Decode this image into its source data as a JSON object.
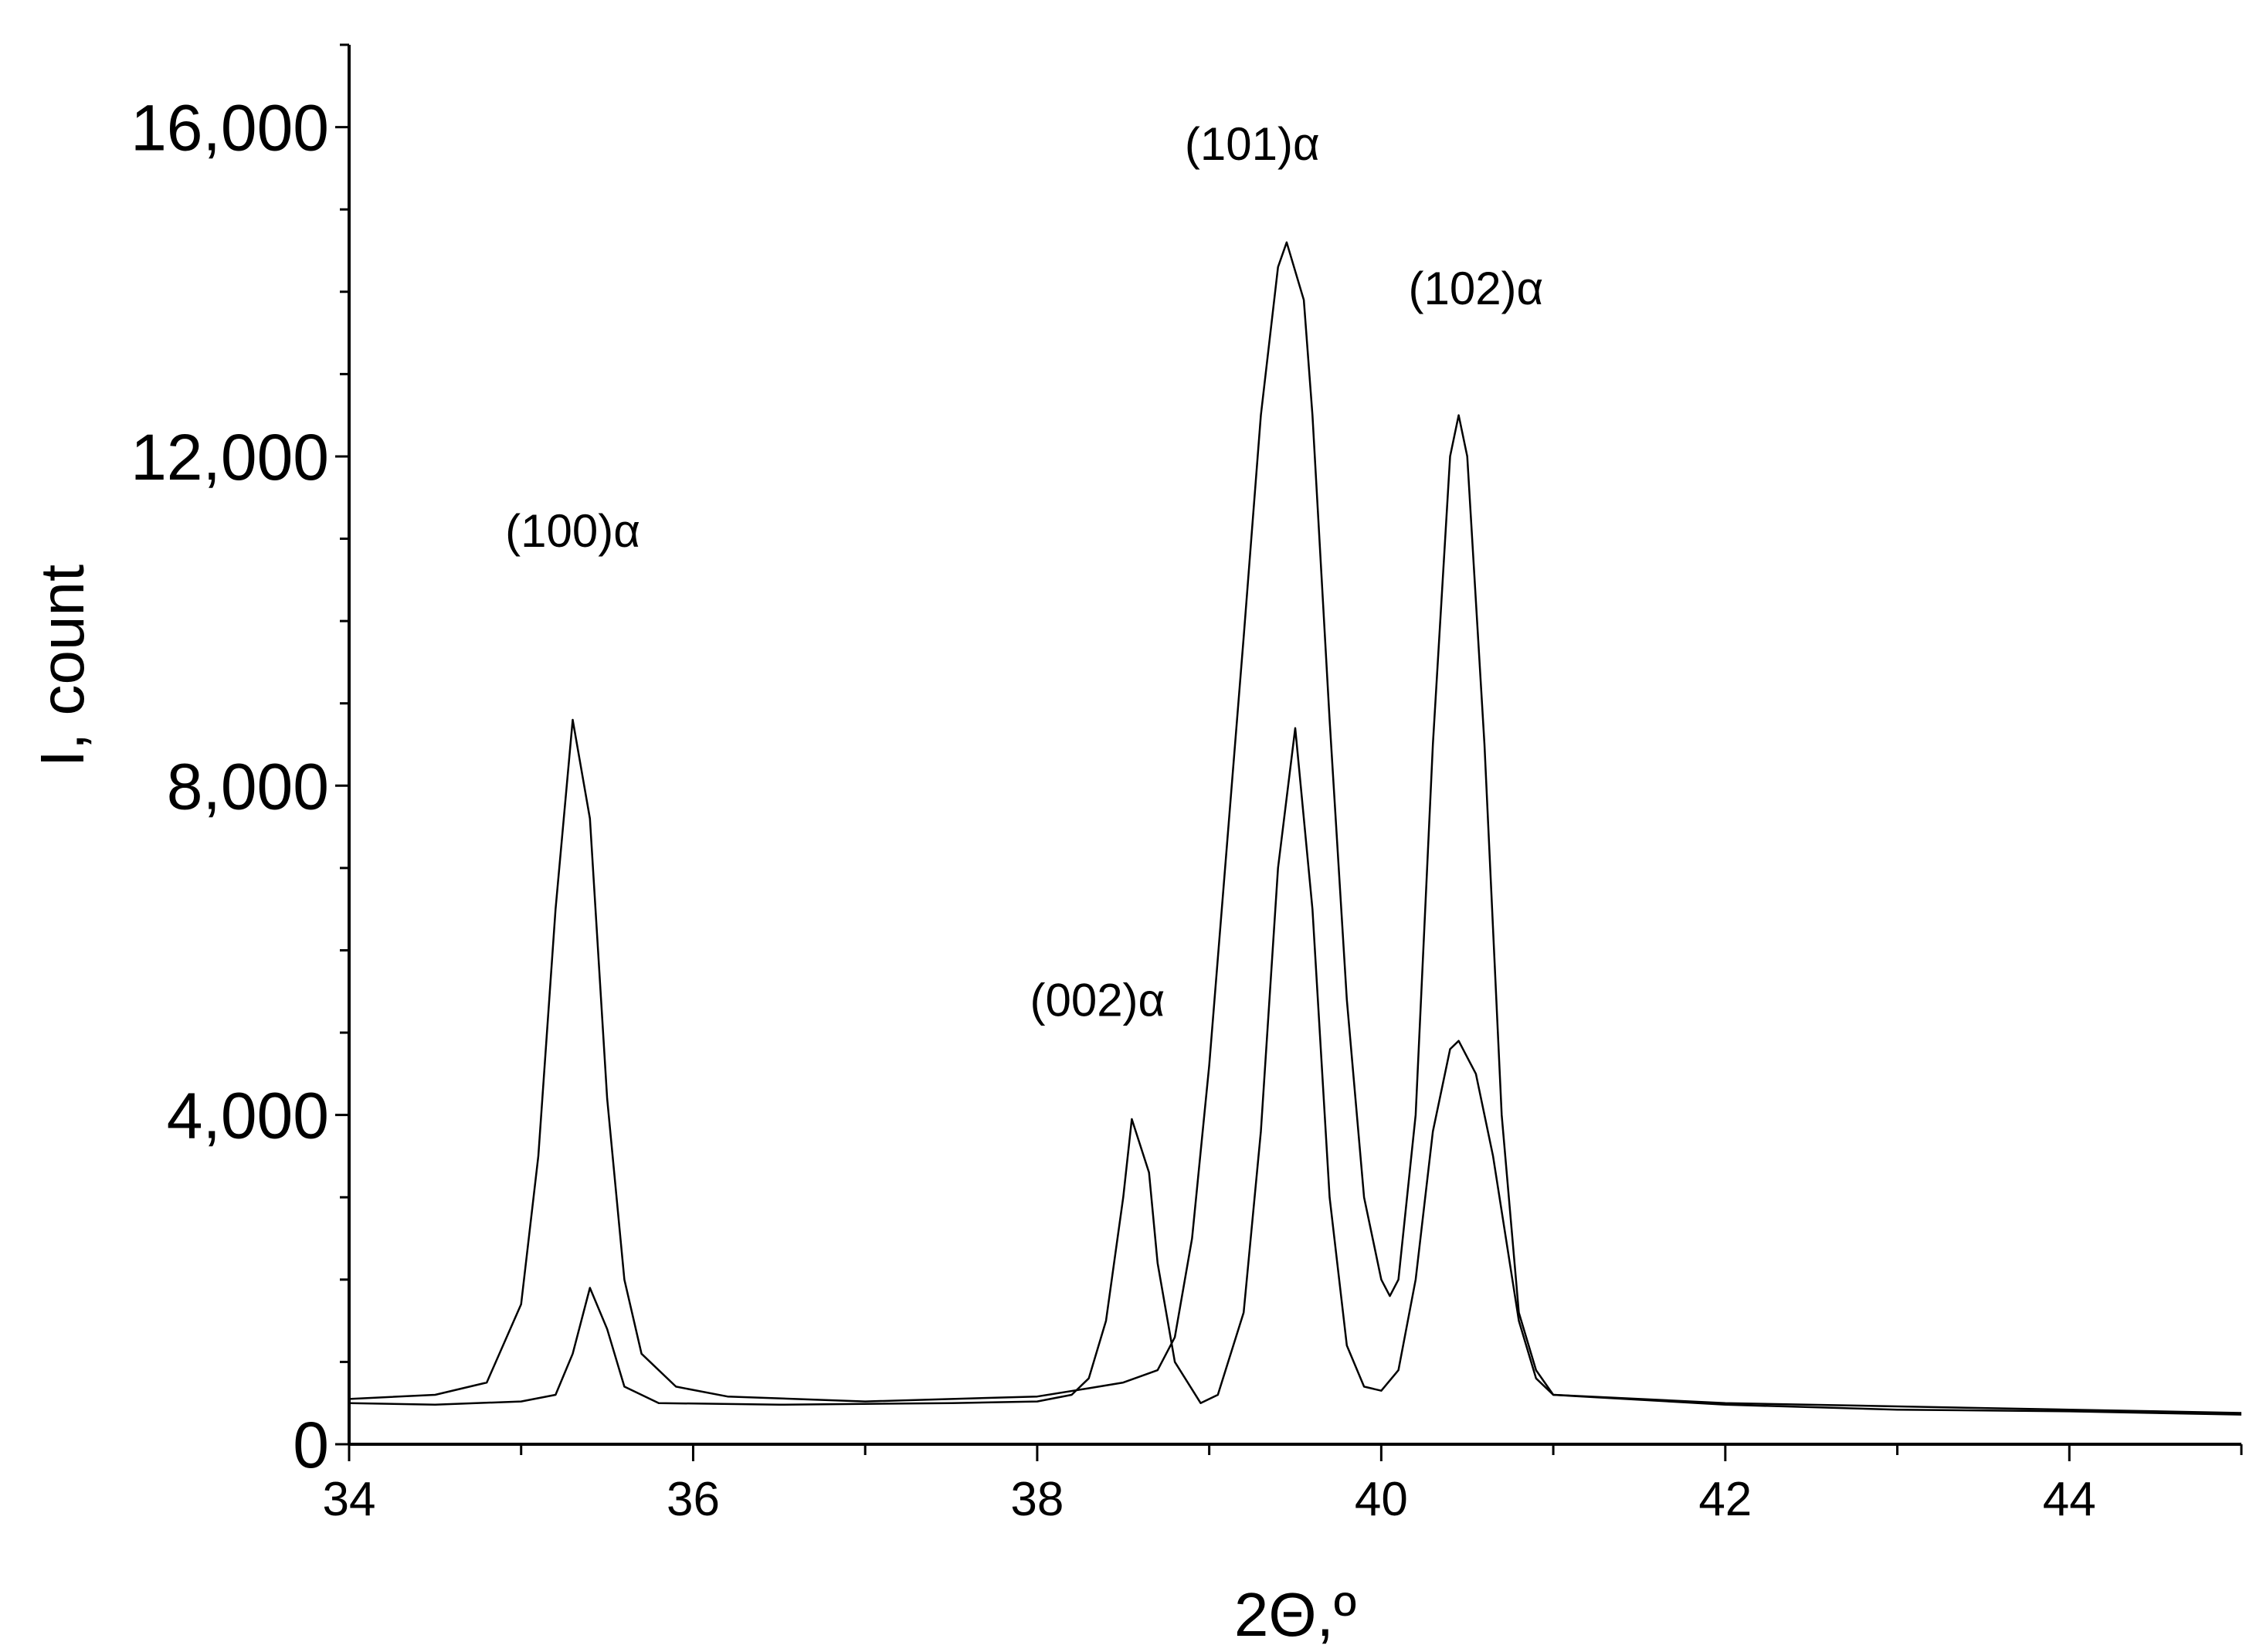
{
  "chart_data": {
    "type": "line",
    "xlabel": "2Θ,º",
    "ylabel": "I, count",
    "xlim": [
      34,
      45
    ],
    "ylim": [
      0,
      17000
    ],
    "x_major_ticks": [
      34,
      36,
      38,
      40,
      42,
      44
    ],
    "x_minor_ticks": [
      35,
      37,
      39,
      41,
      43,
      45
    ],
    "y_major_ticks": [
      0,
      4000,
      8000,
      12000,
      16000
    ],
    "y_tick_labels": [
      "0",
      "4,000",
      "8,000",
      "12,000",
      "16,000"
    ],
    "grid": false,
    "annotations": [
      {
        "text": "(100)α",
        "x": 35.3,
        "y": 10900
      },
      {
        "text": "(002)α",
        "x": 38.35,
        "y": 5200
      },
      {
        "text": "(101)α",
        "x": 39.25,
        "y": 15600
      },
      {
        "text": "(102)α",
        "x": 40.55,
        "y": 13850
      }
    ],
    "series": [
      {
        "points": [
          [
            34.0,
            550
          ],
          [
            34.5,
            600
          ],
          [
            34.8,
            750
          ],
          [
            35.0,
            1700
          ],
          [
            35.1,
            3500
          ],
          [
            35.2,
            6500
          ],
          [
            35.3,
            8800
          ],
          [
            35.4,
            7600
          ],
          [
            35.5,
            4200
          ],
          [
            35.6,
            2000
          ],
          [
            35.7,
            1100
          ],
          [
            35.9,
            700
          ],
          [
            36.2,
            580
          ],
          [
            37.0,
            520
          ],
          [
            38.0,
            580
          ],
          [
            38.3,
            680
          ],
          [
            38.5,
            750
          ],
          [
            38.7,
            900
          ],
          [
            38.8,
            1300
          ],
          [
            38.9,
            2500
          ],
          [
            39.0,
            4600
          ],
          [
            39.1,
            7200
          ],
          [
            39.2,
            9800
          ],
          [
            39.3,
            12500
          ],
          [
            39.4,
            14300
          ],
          [
            39.45,
            14600
          ],
          [
            39.55,
            13900
          ],
          [
            39.6,
            12500
          ],
          [
            39.7,
            8800
          ],
          [
            39.8,
            5400
          ],
          [
            39.9,
            3000
          ],
          [
            40.0,
            2000
          ],
          [
            40.05,
            1800
          ],
          [
            40.1,
            2000
          ],
          [
            40.2,
            4000
          ],
          [
            40.3,
            8500
          ],
          [
            40.4,
            12000
          ],
          [
            40.45,
            12500
          ],
          [
            40.5,
            12000
          ],
          [
            40.6,
            8500
          ],
          [
            40.7,
            4000
          ],
          [
            40.8,
            1600
          ],
          [
            40.9,
            900
          ],
          [
            41.0,
            600
          ],
          [
            42.0,
            480
          ],
          [
            43.0,
            420
          ],
          [
            44.0,
            400
          ],
          [
            45.0,
            360
          ]
        ]
      },
      {
        "points": [
          [
            34.0,
            500
          ],
          [
            34.5,
            480
          ],
          [
            35.0,
            520
          ],
          [
            35.2,
            600
          ],
          [
            35.3,
            1100
          ],
          [
            35.4,
            1900
          ],
          [
            35.5,
            1400
          ],
          [
            35.6,
            700
          ],
          [
            35.8,
            500
          ],
          [
            36.5,
            480
          ],
          [
            37.5,
            500
          ],
          [
            38.0,
            520
          ],
          [
            38.2,
            600
          ],
          [
            38.3,
            800
          ],
          [
            38.4,
            1500
          ],
          [
            38.5,
            3000
          ],
          [
            38.55,
            3950
          ],
          [
            38.65,
            3300
          ],
          [
            38.7,
            2200
          ],
          [
            38.8,
            1000
          ],
          [
            38.95,
            500
          ],
          [
            39.05,
            600
          ],
          [
            39.2,
            1600
          ],
          [
            39.3,
            3800
          ],
          [
            39.4,
            7000
          ],
          [
            39.5,
            8700
          ],
          [
            39.6,
            6500
          ],
          [
            39.7,
            3000
          ],
          [
            39.8,
            1200
          ],
          [
            39.9,
            700
          ],
          [
            40.0,
            650
          ],
          [
            40.1,
            900
          ],
          [
            40.2,
            2000
          ],
          [
            40.3,
            3800
          ],
          [
            40.4,
            4800
          ],
          [
            40.45,
            4900
          ],
          [
            40.55,
            4500
          ],
          [
            40.65,
            3500
          ],
          [
            40.8,
            1500
          ],
          [
            40.9,
            800
          ],
          [
            41.0,
            600
          ],
          [
            42.0,
            500
          ],
          [
            43.0,
            460
          ],
          [
            44.0,
            420
          ],
          [
            45.0,
            380
          ]
        ]
      }
    ]
  }
}
